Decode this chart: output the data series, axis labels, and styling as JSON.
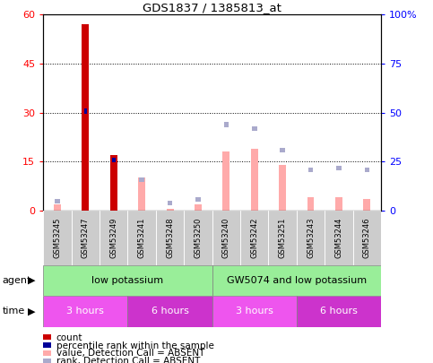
{
  "title": "GDS1837 / 1385813_at",
  "samples": [
    "GSM53245",
    "GSM53247",
    "GSM53249",
    "GSM53241",
    "GSM53248",
    "GSM53250",
    "GSM53240",
    "GSM53242",
    "GSM53251",
    "GSM53243",
    "GSM53244",
    "GSM53246"
  ],
  "count_values": [
    0,
    57,
    17,
    0,
    0,
    0,
    0,
    0,
    0,
    0,
    0,
    0
  ],
  "percentile_values_right": [
    0,
    52,
    27,
    0,
    0,
    0,
    0,
    0,
    0,
    0,
    0,
    0
  ],
  "value_absent": [
    2,
    0,
    0,
    10,
    0.5,
    2,
    18,
    19,
    14,
    4,
    4,
    3.5
  ],
  "rank_absent_right": [
    6,
    0,
    0,
    17,
    5,
    7,
    45,
    43,
    32,
    22,
    23,
    22
  ],
  "ylim_left": [
    0,
    60
  ],
  "ylim_right": [
    0,
    100
  ],
  "yticks_left": [
    0,
    15,
    30,
    45,
    60
  ],
  "yticks_right": [
    0,
    25,
    50,
    75,
    100
  ],
  "ytick_labels_right": [
    "0",
    "25",
    "50",
    "75",
    "100%"
  ],
  "color_count": "#cc0000",
  "color_percentile": "#000099",
  "color_value_absent": "#ffaaaa",
  "color_rank_absent": "#aaaacc",
  "agent_groups": [
    {
      "label": "low potassium",
      "start": 0,
      "end": 6,
      "color": "#99ee99"
    },
    {
      "label": "GW5074 and low potassium",
      "start": 6,
      "end": 12,
      "color": "#99ee99"
    }
  ],
  "time_groups": [
    {
      "label": "3 hours",
      "start": 0,
      "end": 3,
      "color": "#ee55ee"
    },
    {
      "label": "6 hours",
      "start": 3,
      "end": 6,
      "color": "#cc33cc"
    },
    {
      "label": "3 hours",
      "start": 6,
      "end": 9,
      "color": "#ee55ee"
    },
    {
      "label": "6 hours",
      "start": 9,
      "end": 12,
      "color": "#cc33cc"
    }
  ],
  "legend_items": [
    {
      "label": "count",
      "color": "#cc0000"
    },
    {
      "label": "percentile rank within the sample",
      "color": "#000099"
    },
    {
      "label": "value, Detection Call = ABSENT",
      "color": "#ffaaaa"
    },
    {
      "label": "rank, Detection Call = ABSENT",
      "color": "#aaaacc"
    }
  ],
  "figsize": [
    4.83,
    4.05
  ],
  "dpi": 100
}
